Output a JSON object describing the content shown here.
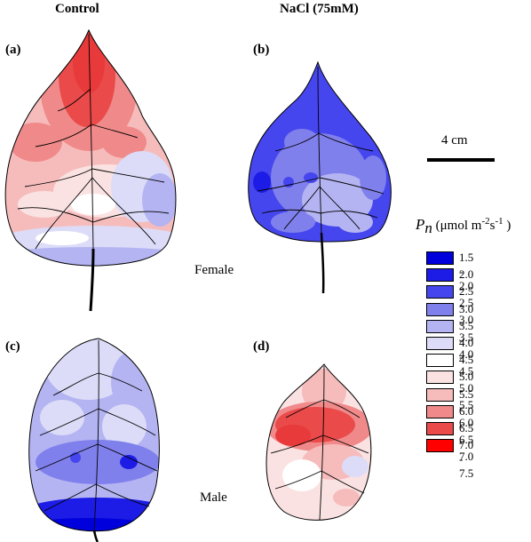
{
  "headers": {
    "control": "Control",
    "nacl": "NaCl (75mM)"
  },
  "panels": {
    "a": "(a)",
    "b": "(b)",
    "c": "(c)",
    "d": "(d)"
  },
  "rows": {
    "female": "Female",
    "male": "Male"
  },
  "scale_bar": {
    "label": "4 cm"
  },
  "legend": {
    "symbol": "P",
    "symbol_sub": "n",
    "unit_before": "(μmol m",
    "unit_exp1": "-2",
    "unit_mid": "s",
    "unit_exp2": "-1",
    "unit_after": ")",
    "items": [
      {
        "range": "1.5 - 2.0",
        "color": "#0000dd"
      },
      {
        "range": "2.0 - 2.5",
        "color": "#1c1ce6"
      },
      {
        "range": "2.5 - 3.0",
        "color": "#4646ee"
      },
      {
        "range": "3.0 - 3.5",
        "color": "#8080ec"
      },
      {
        "range": "3.5 - 4.0",
        "color": "#b4b4f2"
      },
      {
        "range": "4.0 - 4.5",
        "color": "#dcdcf8"
      },
      {
        "range": "4.5 - 5.0",
        "color": "#ffffff"
      },
      {
        "range": "5.0 - 5.5",
        "color": "#fbe2e2"
      },
      {
        "range": "5.5 - 6.0",
        "color": "#f6bcbc"
      },
      {
        "range": "6.0 - 6.5",
        "color": "#f08a8a"
      },
      {
        "range": "6.5 - 7.0",
        "color": "#ea4a4a"
      },
      {
        "range": "7.0 - 7.5",
        "color": "#ff0000"
      }
    ]
  }
}
